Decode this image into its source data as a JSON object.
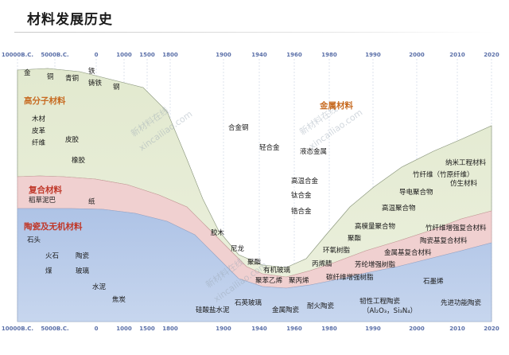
{
  "title": "材料发展历史",
  "axis": {
    "ticks": [
      "10000B.C.",
      "5000B.C.",
      "0",
      "1000",
      "1500",
      "1800",
      "1900",
      "1940",
      "1960",
      "1980",
      "1990",
      "2000",
      "2010",
      "2020"
    ]
  },
  "categories": {
    "polymer": "高分子材料",
    "metal": "金属材料",
    "composite": "复合材料",
    "ceramic": "陶瓷及无机材料"
  },
  "labels": {
    "gold": "金",
    "copper": "铜",
    "bronze": "青铜",
    "iron": "铁",
    "cast_iron": "铸铁",
    "steel": "钢",
    "wood": "木材",
    "leather": "皮革",
    "fiber": "纤维",
    "hide": "皮胶",
    "rubber": "橡胶",
    "alloy_steel": "合金钢",
    "light_alloy": "轻合金",
    "liquid_metal": "液态金属",
    "superalloy": "高温合金",
    "ti_alloy": "钛合金",
    "zr_alloy": "锆合金",
    "straw_mud": "稻草泥巴",
    "paper": "纸",
    "stone": "石头",
    "flint": "火石",
    "pottery": "陶瓷",
    "coal": "煤",
    "glass": "玻璃",
    "cement": "水泥",
    "coke": "焦炭",
    "bakelite": "胶木",
    "nylon": "尼龙",
    "polyester": "聚酯",
    "organic_glass": "有机玻璃",
    "polystyrene": "聚苯乙烯",
    "polypropylene": "聚丙烯",
    "acrylic": "丙烯腈",
    "epoxy": "环氧树脂",
    "polyester2": "聚酯",
    "cf_resin": "碳纤维增强树脂",
    "aramid_resin": "芳纶增强树脂",
    "hm_polymer": "高模量聚合物",
    "ht_polymer": "高温聚合物",
    "conductive_polymer": "导电聚合物",
    "nano_material": "纳米工程材料",
    "bamboo_fiber": "竹纤维（竹原纤维）",
    "bionic": "仿生材料",
    "fiber_composite": "竹纤维增强复合材料",
    "ceramic_composite": "陶瓷基复合材料",
    "metal_composite": "金属基复合材料",
    "silicate_cement": "硅酸盐水泥",
    "quartz_glass": "石英玻璃",
    "metal_ceramic": "金属陶瓷",
    "fire_ceramic": "耐火陶瓷",
    "tough_ceramic": "韧性工程陶瓷",
    "ceramic_formula": "（Al₂O₃，Si₃N₄）",
    "graphene": "石墨烯",
    "functional_ceramic": "先进功能陶瓷"
  },
  "watermarks": [
    "新材料在线",
    "xincailiao.com",
    "新材料在线",
    "xincailiao.com",
    "新材料在线",
    "xincailiao.com"
  ],
  "colors": {
    "polymer": "#e6ecd5",
    "metal": "#f4f7f6",
    "composite": "#f2d3d3",
    "ceramic": "#b6c8e6",
    "axis_text": "#5a6fa8"
  }
}
